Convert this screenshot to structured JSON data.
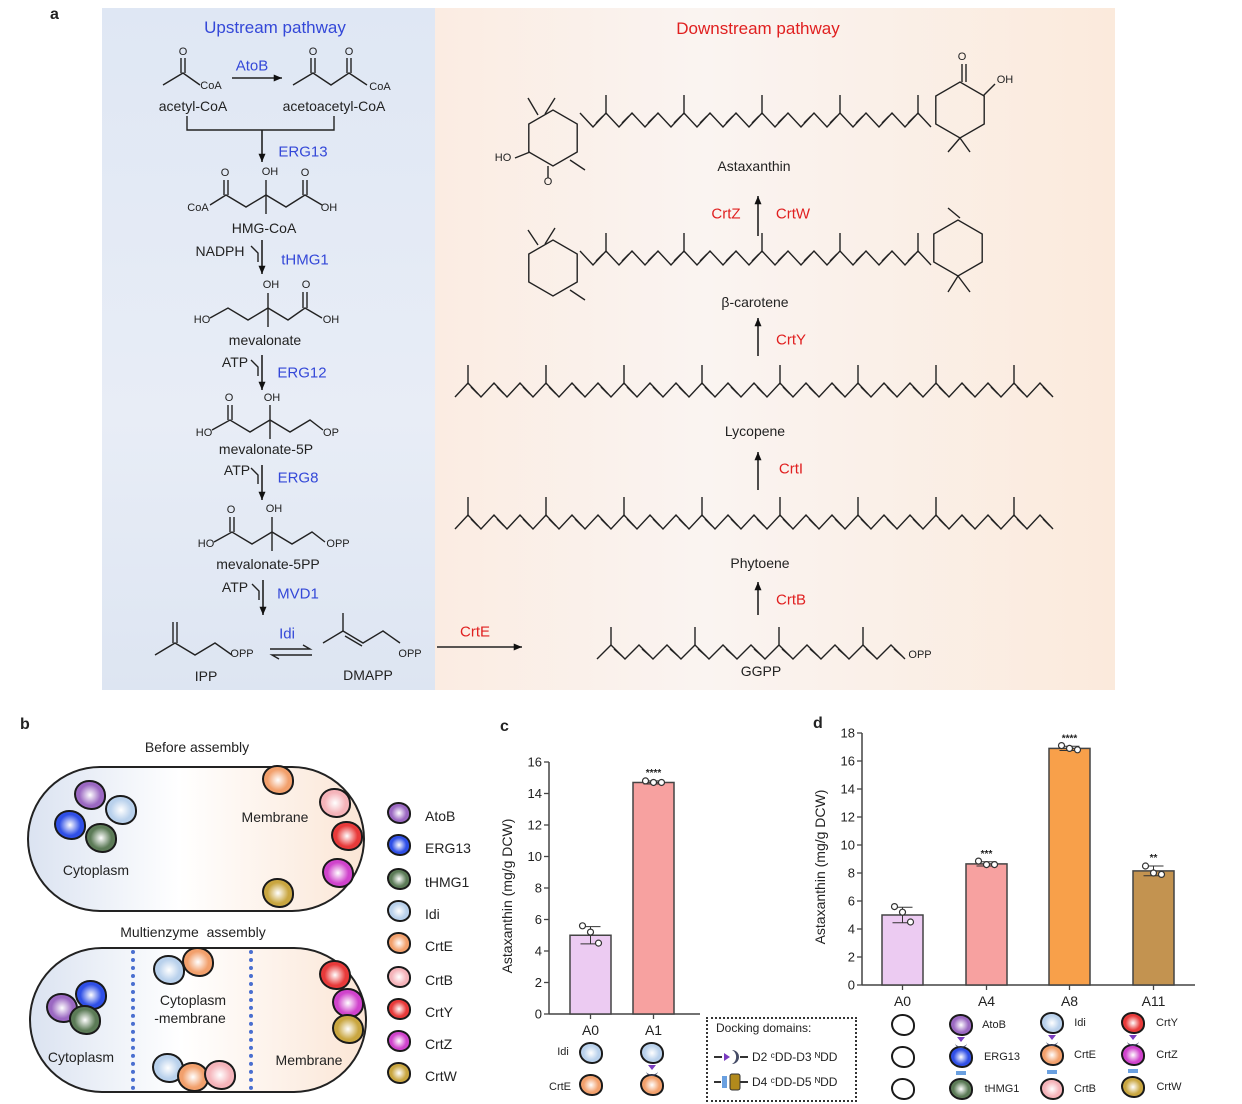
{
  "panel_a": {
    "label": "a",
    "upstream_title": "Upstream pathway",
    "downstream_title": "Downstream pathway",
    "metabolites": {
      "acetyl_coa": "acetyl-CoA",
      "acetoacetyl_coa": "acetoacetyl-CoA",
      "hmg_coa": "HMG-CoA",
      "mevalonate": "mevalonate",
      "mevalonate_5p": "mevalonate-5P",
      "mevalonate_5pp": "mevalonate-5PP",
      "ipp": "IPP",
      "dmapp": "DMAPP",
      "ggpp": "GGPP",
      "phytoene": "Phytoene",
      "lycopene": "Lycopene",
      "beta_carotene": "β-carotene",
      "astaxanthin": "Astaxanthin"
    },
    "upstream_enzymes": {
      "atob": "AtoB",
      "erg13": "ERG13",
      "thmg1": "tHMG1",
      "erg12": "ERG12",
      "erg8": "ERG8",
      "mvd1": "MVD1",
      "idi": "Idi"
    },
    "downstream_enzymes": {
      "crte": "CrtE",
      "crtb": "CrtB",
      "crti": "CrtI",
      "crty": "CrtY",
      "crtz": "CrtZ",
      "crtw": "CrtW"
    },
    "cofactors": {
      "nadph": "NADPH",
      "atp": "ATP"
    },
    "atoms": [
      "O",
      "CoA",
      "O",
      "O",
      "CoA",
      "O",
      "OH",
      "O",
      "CoA",
      "OH",
      "OH",
      "O",
      "HO",
      "OH",
      "O",
      "OH",
      "HO",
      "OP",
      "O",
      "OH",
      "HO",
      "OPP",
      "OPP",
      "OPP",
      "OPP",
      "O",
      "OH",
      "HO",
      "O"
    ]
  },
  "panel_b": {
    "label": "b",
    "before_title": "Before assembly",
    "after_title": "Multienzyme  assembly",
    "cytoplasm": "Cytoplasm",
    "membrane": "Membrane",
    "cytoplasm_membrane_1": "Cytoplasm",
    "cytoplasm_membrane_2": "-membrane",
    "legend": [
      {
        "name": "AtoB",
        "color": "#9b68c2"
      },
      {
        "name": "ERG13",
        "color": "#2f4fe6"
      },
      {
        "name": "tHMG1",
        "color": "#5c7b57"
      },
      {
        "name": "Idi",
        "color": "#b9d1ec"
      },
      {
        "name": "CrtE",
        "color": "#f2a06c"
      },
      {
        "name": "CrtB",
        "color": "#f5b4ba"
      },
      {
        "name": "CrtY",
        "color": "#e83a3a"
      },
      {
        "name": "CrtZ",
        "color": "#d043cc"
      },
      {
        "name": "CrtW",
        "color": "#c9a640"
      }
    ]
  },
  "chart_data": [
    {
      "type": "bar",
      "panel": "c",
      "ylabel": "Astaxanthin (mg/g DCW)",
      "ylim": [
        0,
        16
      ],
      "yticks": [
        0,
        2,
        4,
        6,
        8,
        10,
        12,
        14,
        16
      ],
      "categories": [
        "A0",
        "A1"
      ],
      "values": [
        5.0,
        14.7
      ],
      "points": [
        [
          5.6,
          5.2,
          4.5
        ],
        [
          14.8,
          14.7,
          14.7
        ]
      ],
      "error": [
        0.55,
        0.1
      ],
      "significance": [
        "",
        "****"
      ],
      "colors": [
        "#eccbf2",
        "#f7a1a0"
      ]
    },
    {
      "type": "bar",
      "panel": "d",
      "ylabel": "Astaxanthin (mg/g DCW)",
      "ylim": [
        0,
        18
      ],
      "yticks": [
        0,
        2,
        4,
        6,
        8,
        10,
        12,
        14,
        16,
        18
      ],
      "categories": [
        "A0",
        "A4",
        "A8",
        "A11"
      ],
      "values": [
        5.0,
        8.65,
        16.9,
        8.15
      ],
      "points": [
        [
          5.6,
          5.2,
          4.5
        ],
        [
          8.85,
          8.6,
          8.6
        ],
        [
          17.1,
          16.9,
          16.8
        ],
        [
          8.5,
          8.0,
          7.9
        ]
      ],
      "error": [
        0.55,
        0.15,
        0.15,
        0.35
      ],
      "significance": [
        "",
        "***",
        "****",
        "**"
      ],
      "colors": [
        "#eccbf2",
        "#f7a1a0",
        "#f8a04a",
        "#c39350"
      ]
    }
  ],
  "panel_c": {
    "label": "c",
    "row_labels": [
      "Idi",
      "CrtE"
    ]
  },
  "panel_d": {
    "label": "d",
    "a4": [
      "AtoB",
      "ERG13",
      "tHMG1"
    ],
    "a8": [
      "Idi",
      "CrtE",
      "CrtB"
    ],
    "a11": [
      "CrtY",
      "CrtZ",
      "CrtW"
    ]
  },
  "docking": {
    "title": "Docking domains:",
    "row1": "D2 ᶜDD-D3 ᴺDD",
    "row2": "D4 ᶜDD-D5 ᴺDD"
  }
}
